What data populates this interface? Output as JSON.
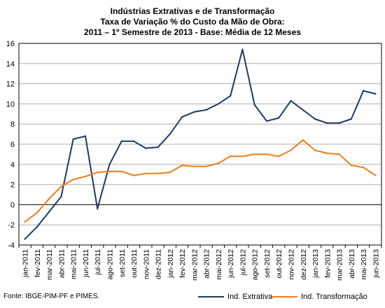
{
  "title_lines": [
    "Indústrias Extrativas e de Transformação",
    "Taxa de Variação % do Custo da Mão de Obra:",
    "2011 – 1º Semestre de 2013 - Base: Média de 12 Meses"
  ],
  "source": "Fonte: IBGE-PIM-PF e PIMES.",
  "chart_data": {
    "type": "line",
    "title": "Indústrias Extrativas e de Transformação / Taxa de Variação % do Custo da Mão de Obra: 2011 – 1º Semestre de 2013 - Base: Média de 12 Meses",
    "xlabel": "",
    "ylabel": "",
    "ylim": [
      -4,
      16
    ],
    "yticks": [
      -4,
      -2,
      0,
      2,
      4,
      6,
      8,
      10,
      12,
      14,
      16
    ],
    "grid": true,
    "legend_position": "bottom-right",
    "categories": [
      "jan-2011",
      "fev-2011",
      "mar-2011",
      "abr-2011",
      "mai-2011",
      "jun-2011",
      "jul-2011",
      "ago-2011",
      "set-2011",
      "out-2011",
      "nov-2011",
      "dez-2011",
      "jan-2012",
      "fev-2012",
      "mar-2012",
      "abr-2012",
      "mai-2012",
      "jun-2012",
      "jul-2012",
      "ago-2012",
      "set-2012",
      "out-2012",
      "nov-2012",
      "dez-2012",
      "jan-2013",
      "fev-2013",
      "mar-2013",
      "abr-2013",
      "mai-2013",
      "jun-2013"
    ],
    "series": [
      {
        "name": "Ind. Extrativa",
        "color": "#1f3a5f",
        "values": [
          -3.4,
          -2.2,
          -0.7,
          0.8,
          6.5,
          6.8,
          -0.4,
          4.0,
          6.3,
          6.3,
          5.6,
          5.7,
          7.0,
          8.7,
          9.2,
          9.4,
          10.0,
          10.8,
          15.4,
          9.9,
          8.3,
          8.6,
          10.3,
          9.4,
          8.5,
          8.1,
          8.1,
          8.5,
          11.3,
          11.0
        ]
      },
      {
        "name": "Ind. Transformação",
        "color": "#f07d1a",
        "values": [
          -1.7,
          -0.8,
          0.6,
          1.8,
          2.5,
          2.8,
          3.2,
          3.3,
          3.3,
          2.9,
          3.1,
          3.1,
          3.2,
          3.9,
          3.8,
          3.8,
          4.1,
          4.8,
          4.8,
          5.0,
          5.0,
          4.8,
          5.4,
          6.4,
          5.4,
          5.1,
          5.0,
          3.9,
          3.7,
          2.9
        ]
      }
    ]
  }
}
